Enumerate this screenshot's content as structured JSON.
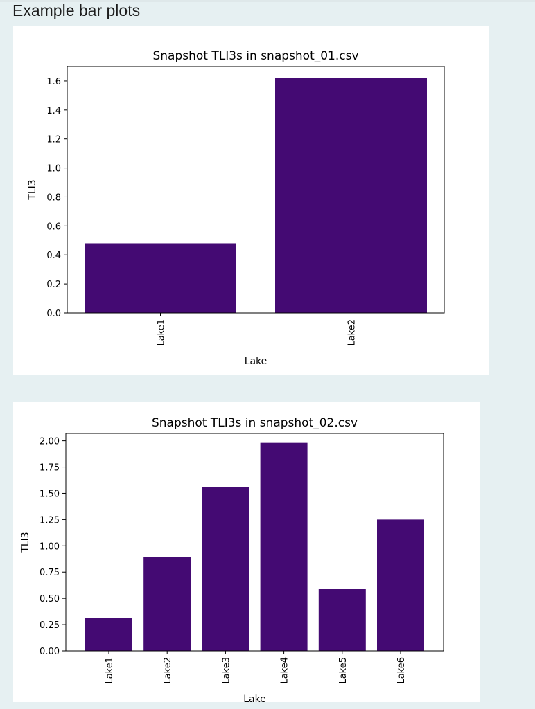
{
  "notebook": {
    "heading": "Example bar plots"
  },
  "chart_data": [
    {
      "type": "bar",
      "title": "Snapshot TLI3s in snapshot_01.csv",
      "xlabel": "Lake",
      "ylabel": "TLI3",
      "categories": [
        "Lake1",
        "Lake2"
      ],
      "values": [
        0.48,
        1.62
      ],
      "ylim": [
        0,
        1.7
      ],
      "yticks": [
        0.0,
        0.2,
        0.4,
        0.6,
        0.8,
        1.0,
        1.2,
        1.4,
        1.6
      ],
      "ytick_labels": [
        "0.0",
        "0.2",
        "0.4",
        "0.6",
        "0.8",
        "1.0",
        "1.2",
        "1.4",
        "1.6"
      ],
      "bar_color": "#440a73",
      "grid": false,
      "legend": "none"
    },
    {
      "type": "bar",
      "title": "Snapshot TLI3s in snapshot_02.csv",
      "xlabel": "Lake",
      "ylabel": "TLI3",
      "categories": [
        "Lake1",
        "Lake2",
        "Lake3",
        "Lake4",
        "Lake5",
        "Lake6"
      ],
      "values": [
        0.31,
        0.89,
        1.56,
        1.98,
        0.59,
        1.25
      ],
      "ylim": [
        0,
        2.07
      ],
      "yticks": [
        0.0,
        0.25,
        0.5,
        0.75,
        1.0,
        1.25,
        1.5,
        1.75,
        2.0
      ],
      "ytick_labels": [
        "0.00",
        "0.25",
        "0.50",
        "0.75",
        "1.00",
        "1.25",
        "1.50",
        "1.75",
        "2.00"
      ],
      "bar_color": "#440a73",
      "grid": false,
      "legend": "none"
    }
  ]
}
